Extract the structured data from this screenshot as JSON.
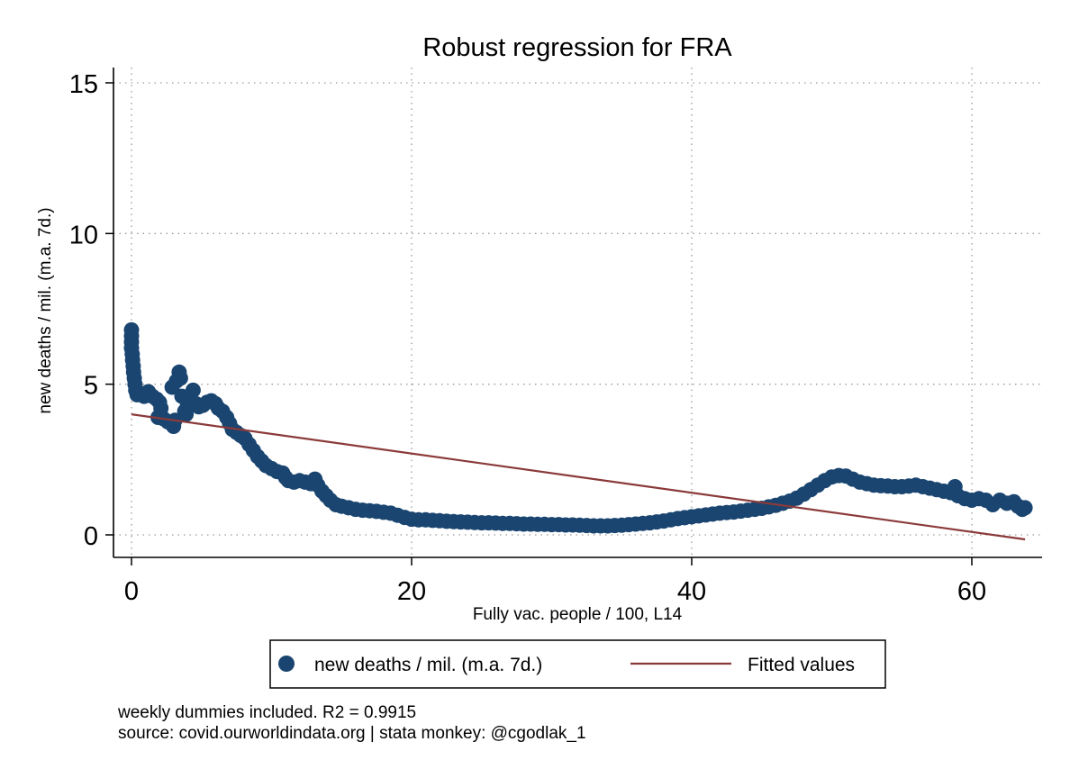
{
  "chart_data": {
    "type": "scatter",
    "title": "Robust regression for FRA",
    "xlabel": "Fully vac. people / 100, L14",
    "ylabel": "new deaths / mil. (m.a. 7d.)",
    "xlim": [
      -1,
      64.5
    ],
    "ylim": [
      -0.8,
      15.6
    ],
    "xticks": [
      0,
      20,
      40,
      60
    ],
    "yticks": [
      0,
      5,
      10,
      15
    ],
    "grid": true,
    "legend_position": "bottom",
    "colors": {
      "points": "#1a4570",
      "fit": "#8b3a3a"
    },
    "series": [
      {
        "name": "new deaths / mil. (m.a. 7d.)",
        "kind": "scatter",
        "points": [
          [
            0,
            6.8
          ],
          [
            0,
            6.6
          ],
          [
            0,
            6.4
          ],
          [
            0,
            6.2
          ],
          [
            0.05,
            6.0
          ],
          [
            0.08,
            5.8
          ],
          [
            0.12,
            5.6
          ],
          [
            0.15,
            5.4
          ],
          [
            0.2,
            5.2
          ],
          [
            0.25,
            5.0
          ],
          [
            0.3,
            4.8
          ],
          [
            0.4,
            4.65
          ],
          [
            0.6,
            4.7
          ],
          [
            0.9,
            4.6
          ],
          [
            1.2,
            4.75
          ],
          [
            1.5,
            4.6
          ],
          [
            1.8,
            4.5
          ],
          [
            2.0,
            4.4
          ],
          [
            2.1,
            4.2
          ],
          [
            1.9,
            3.9
          ],
          [
            2.3,
            3.85
          ],
          [
            2.6,
            3.75
          ],
          [
            2.9,
            3.7
          ],
          [
            3.0,
            3.6
          ],
          [
            3.1,
            3.8
          ],
          [
            2.9,
            4.9
          ],
          [
            3.2,
            5.1
          ],
          [
            3.4,
            5.4
          ],
          [
            3.5,
            5.2
          ],
          [
            3.6,
            4.6
          ],
          [
            3.8,
            4.1
          ],
          [
            3.9,
            4.0
          ],
          [
            4.0,
            4.3
          ],
          [
            4.2,
            4.5
          ],
          [
            4.4,
            4.8
          ],
          [
            4.6,
            4.35
          ],
          [
            4.8,
            4.25
          ],
          [
            5.1,
            4.3
          ],
          [
            5.4,
            4.4
          ],
          [
            5.7,
            4.45
          ],
          [
            6.0,
            4.35
          ],
          [
            6.2,
            4.2
          ],
          [
            6.5,
            4.1
          ],
          [
            6.8,
            3.9
          ],
          [
            7.0,
            3.7
          ],
          [
            7.2,
            3.5
          ],
          [
            7.5,
            3.4
          ],
          [
            7.8,
            3.3
          ],
          [
            8.1,
            3.2
          ],
          [
            8.4,
            3.0
          ],
          [
            8.7,
            2.8
          ],
          [
            9.0,
            2.6
          ],
          [
            9.3,
            2.45
          ],
          [
            9.6,
            2.3
          ],
          [
            10.0,
            2.2
          ],
          [
            10.4,
            2.1
          ],
          [
            10.8,
            2.05
          ],
          [
            11.0,
            1.9
          ],
          [
            11.2,
            1.8
          ],
          [
            11.6,
            1.75
          ],
          [
            12.0,
            1.8
          ],
          [
            12.4,
            1.75
          ],
          [
            12.8,
            1.7
          ],
          [
            13.1,
            1.85
          ],
          [
            13.3,
            1.65
          ],
          [
            13.6,
            1.45
          ],
          [
            13.9,
            1.3
          ],
          [
            14.2,
            1.15
          ],
          [
            14.6,
            1.0
          ],
          [
            15.0,
            0.95
          ],
          [
            15.5,
            0.9
          ],
          [
            16.0,
            0.85
          ],
          [
            16.5,
            0.82
          ],
          [
            17.0,
            0.8
          ],
          [
            17.5,
            0.78
          ],
          [
            18.0,
            0.75
          ],
          [
            18.5,
            0.72
          ],
          [
            19.0,
            0.65
          ],
          [
            19.5,
            0.58
          ],
          [
            20.0,
            0.52
          ],
          [
            20.5,
            0.5
          ],
          [
            21.0,
            0.5
          ],
          [
            21.5,
            0.48
          ],
          [
            22.0,
            0.47
          ],
          [
            22.5,
            0.45
          ],
          [
            23.0,
            0.44
          ],
          [
            23.5,
            0.43
          ],
          [
            24.0,
            0.42
          ],
          [
            24.5,
            0.41
          ],
          [
            25.0,
            0.4
          ],
          [
            25.5,
            0.4
          ],
          [
            26.0,
            0.39
          ],
          [
            26.5,
            0.38
          ],
          [
            27.0,
            0.38
          ],
          [
            27.5,
            0.37
          ],
          [
            28.0,
            0.36
          ],
          [
            28.5,
            0.36
          ],
          [
            29.0,
            0.35
          ],
          [
            29.5,
            0.35
          ],
          [
            30.0,
            0.34
          ],
          [
            30.5,
            0.34
          ],
          [
            31.0,
            0.33
          ],
          [
            31.5,
            0.33
          ],
          [
            32.0,
            0.32
          ],
          [
            32.5,
            0.31
          ],
          [
            33.0,
            0.3
          ],
          [
            33.5,
            0.3
          ],
          [
            34.0,
            0.3
          ],
          [
            34.5,
            0.31
          ],
          [
            35.0,
            0.32
          ],
          [
            35.5,
            0.34
          ],
          [
            36.0,
            0.36
          ],
          [
            36.5,
            0.38
          ],
          [
            37.0,
            0.4
          ],
          [
            37.5,
            0.43
          ],
          [
            38.0,
            0.46
          ],
          [
            38.5,
            0.5
          ],
          [
            39.0,
            0.54
          ],
          [
            39.5,
            0.57
          ],
          [
            40.0,
            0.6
          ],
          [
            40.5,
            0.63
          ],
          [
            41.0,
            0.66
          ],
          [
            41.5,
            0.69
          ],
          [
            42.0,
            0.72
          ],
          [
            42.5,
            0.74
          ],
          [
            43.0,
            0.76
          ],
          [
            43.5,
            0.79
          ],
          [
            44.0,
            0.82
          ],
          [
            44.5,
            0.85
          ],
          [
            45.0,
            0.88
          ],
          [
            45.5,
            0.93
          ],
          [
            46.0,
            0.98
          ],
          [
            46.5,
            1.05
          ],
          [
            47.0,
            1.12
          ],
          [
            47.5,
            1.22
          ],
          [
            48.0,
            1.35
          ],
          [
            48.5,
            1.5
          ],
          [
            49.0,
            1.65
          ],
          [
            49.5,
            1.8
          ],
          [
            50.0,
            1.92
          ],
          [
            50.5,
            1.97
          ],
          [
            51.0,
            1.95
          ],
          [
            51.5,
            1.85
          ],
          [
            52.0,
            1.75
          ],
          [
            52.5,
            1.7
          ],
          [
            53.0,
            1.65
          ],
          [
            53.5,
            1.63
          ],
          [
            54.0,
            1.62
          ],
          [
            54.5,
            1.6
          ],
          [
            55.0,
            1.6
          ],
          [
            55.5,
            1.62
          ],
          [
            56.0,
            1.65
          ],
          [
            56.5,
            1.6
          ],
          [
            57.0,
            1.55
          ],
          [
            57.5,
            1.5
          ],
          [
            58.0,
            1.45
          ],
          [
            58.5,
            1.4
          ],
          [
            58.8,
            1.6
          ],
          [
            59.0,
            1.3
          ],
          [
            59.5,
            1.2
          ],
          [
            60.0,
            1.15
          ],
          [
            60.5,
            1.2
          ],
          [
            61.0,
            1.15
          ],
          [
            61.5,
            1.0
          ],
          [
            62.0,
            1.15
          ],
          [
            62.5,
            1.05
          ],
          [
            63.0,
            1.1
          ],
          [
            63.3,
            0.95
          ],
          [
            63.6,
            0.85
          ],
          [
            63.8,
            0.9
          ]
        ]
      },
      {
        "name": "Fitted values",
        "kind": "line",
        "points": [
          [
            0,
            4.0
          ],
          [
            63.8,
            -0.15
          ]
        ]
      }
    ],
    "legend": [
      "new deaths / mil. (m.a. 7d.)",
      "Fitted values"
    ]
  },
  "notes": {
    "line1": "weekly dummies included. R2 = 0.9915",
    "line2": "source: covid.ourworldindata.org | stata monkey: @cgodlak_1"
  }
}
